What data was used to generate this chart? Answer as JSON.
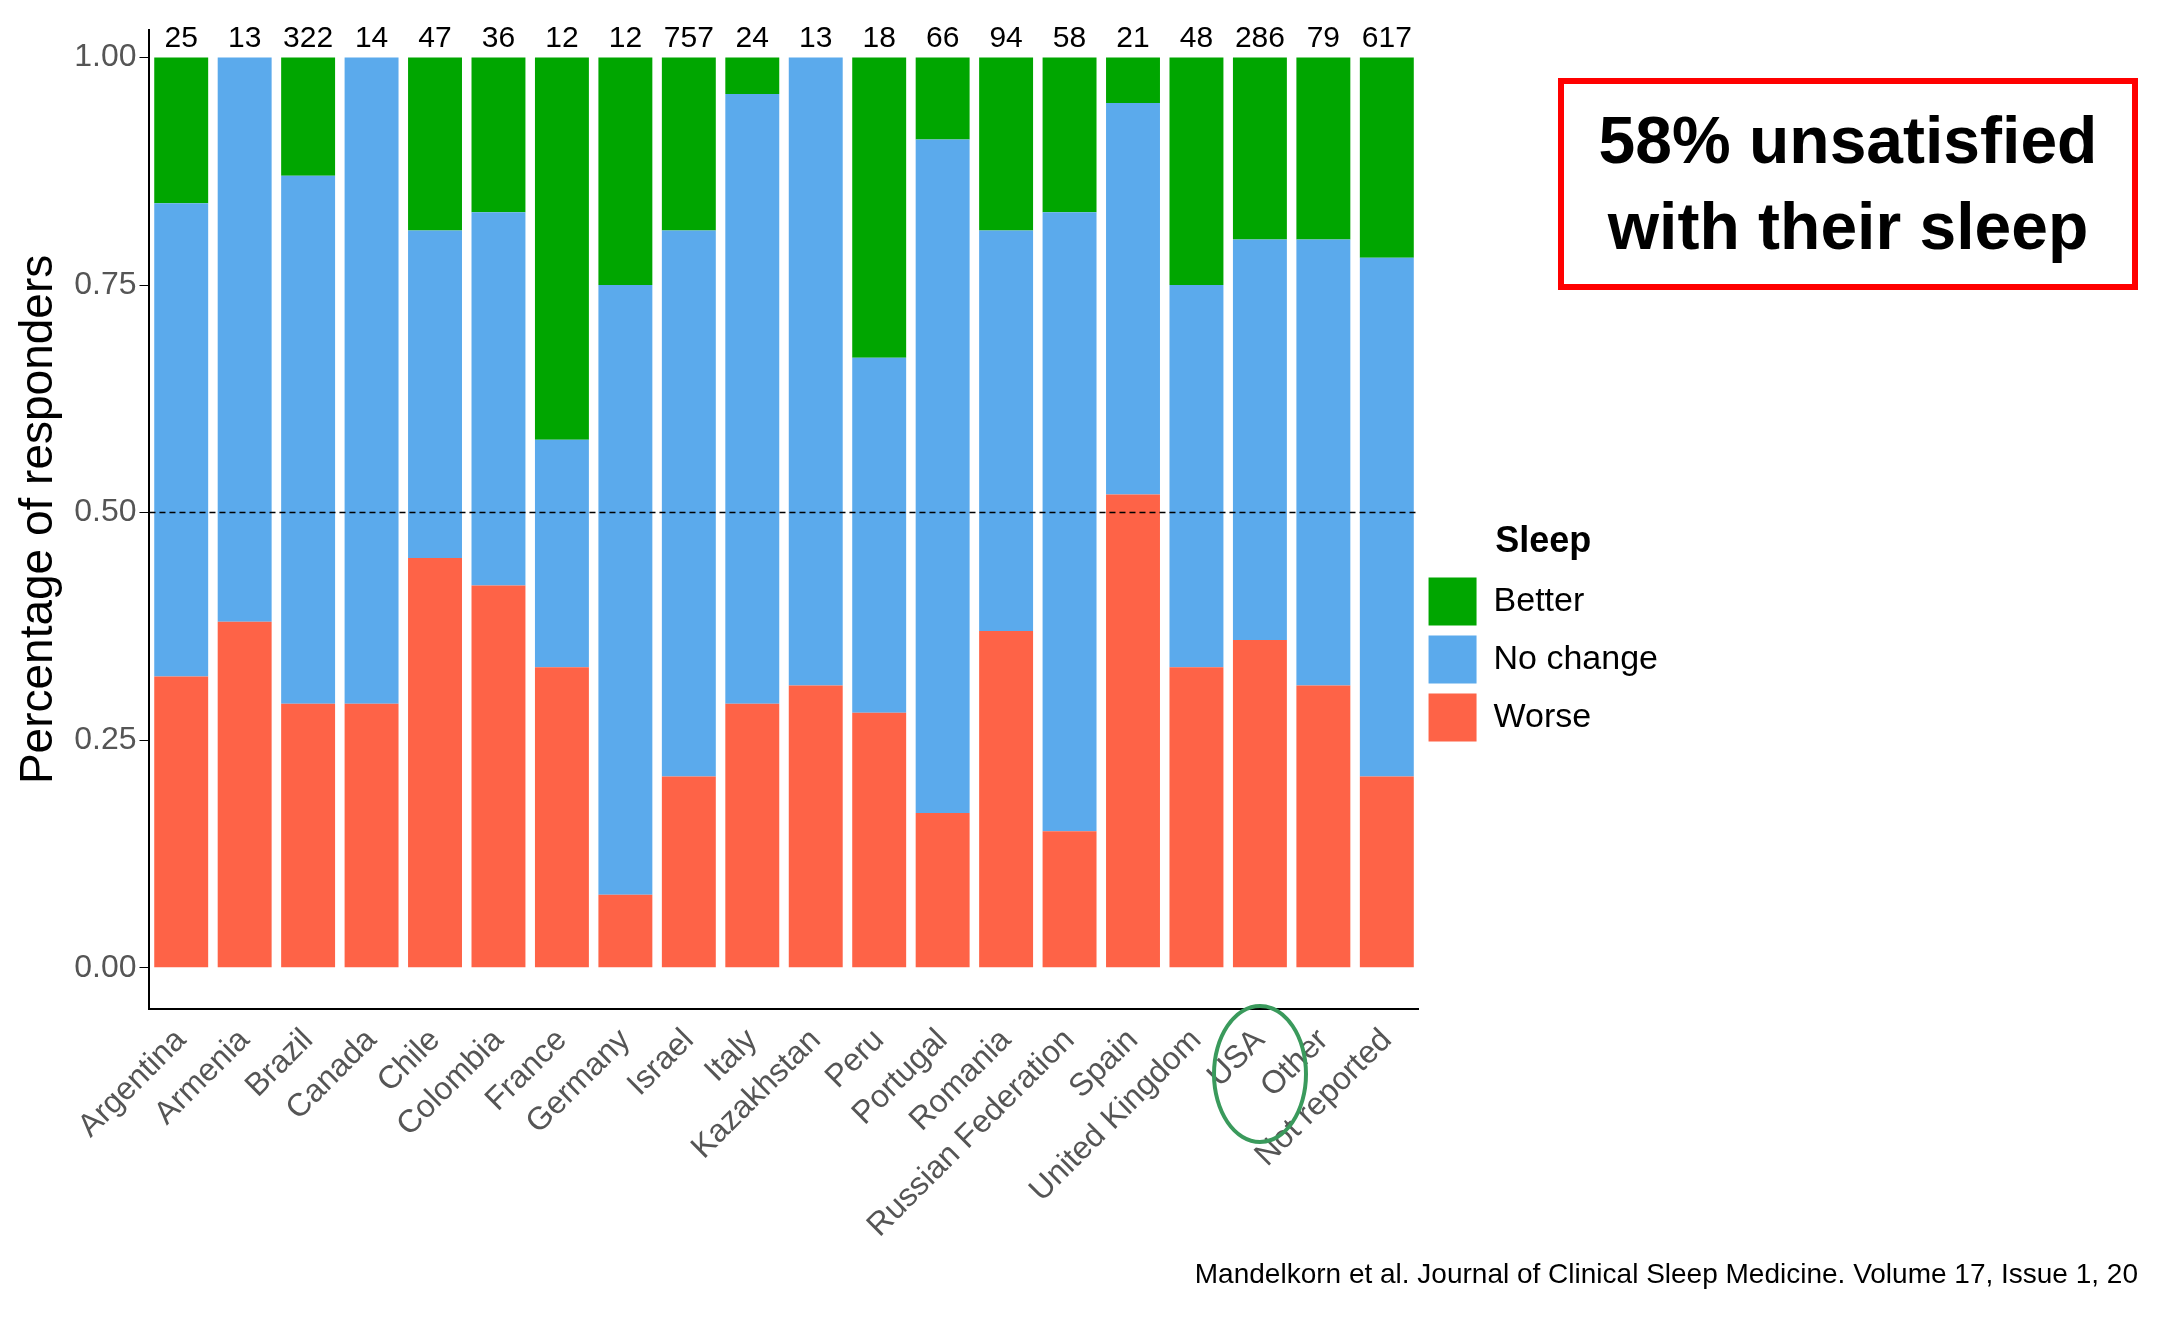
{
  "chart_data": {
    "type": "bar",
    "stacked": true,
    "ylabel": "Percentage of responders",
    "categories": [
      "Argentina",
      "Armenia",
      "Brazil",
      "Canada",
      "Chile",
      "Colombia",
      "France",
      "Germany",
      "Israel",
      "Italy",
      "Kazakhstan",
      "Peru",
      "Portugal",
      "Romania",
      "Russian Federation",
      "Spain",
      "United Kingdom",
      "USA",
      "Other",
      "Not reported"
    ],
    "series": [
      {
        "name": "Worse",
        "color": "#fe6347",
        "values": [
          0.32,
          0.38,
          0.29,
          0.29,
          0.45,
          0.42,
          0.33,
          0.08,
          0.21,
          0.29,
          0.31,
          0.28,
          0.17,
          0.37,
          0.15,
          0.52,
          0.33,
          0.36,
          0.31,
          0.21
        ]
      },
      {
        "name": "No change",
        "color": "#5baaec",
        "values": [
          0.52,
          0.62,
          0.58,
          0.71,
          0.36,
          0.41,
          0.25,
          0.67,
          0.6,
          0.67,
          0.69,
          0.39,
          0.74,
          0.44,
          0.68,
          0.43,
          0.42,
          0.44,
          0.49,
          0.57
        ]
      },
      {
        "name": "Better",
        "color": "#00a600",
        "values": [
          0.16,
          0,
          0.13,
          0,
          0.19,
          0.17,
          0.42,
          0.25,
          0.19,
          0.04,
          0,
          0.33,
          0.09,
          0.19,
          0.17,
          0.05,
          0.25,
          0.2,
          0.2,
          0.22
        ]
      }
    ],
    "ylim": [
      -0.045,
      1.03
    ],
    "yticks": [
      {
        "value": 0,
        "label": "0.00"
      },
      {
        "value": 0.25,
        "label": "0.25"
      },
      {
        "value": 0.5,
        "label": "0.50"
      },
      {
        "value": 0.75,
        "label": "0.75"
      },
      {
        "value": 1,
        "label": "1.00"
      }
    ],
    "ref_lines": [
      {
        "axis": "y",
        "value": 0.5,
        "line_style": "dashed",
        "color": "#000000"
      }
    ],
    "legend": "right",
    "legend_title": "Sleep",
    "grid": false,
    "annotations": [
      "58% unsatisfied with their sleep",
      "Mandelkorn et al. Journal of Clinical Sleep Medicine. Volume 17, Issue 1, 20",
      {
        "text": "25",
        "x": "Argentina",
        "y": 1
      },
      {
        "text": "13",
        "x": "Armenia",
        "y": 1
      },
      {
        "text": "322",
        "x": "Brazil",
        "y": 1
      },
      {
        "text": "14",
        "x": "Canada",
        "y": 1
      },
      {
        "text": "47",
        "x": "Chile",
        "y": 1
      },
      {
        "text": "36",
        "x": "Colombia",
        "y": 1
      },
      {
        "text": "12",
        "x": "France",
        "y": 1
      },
      {
        "text": "12",
        "x": "Germany",
        "y": 1
      },
      {
        "text": "757",
        "x": "Israel",
        "y": 1
      },
      {
        "text": "24",
        "x": "Italy",
        "y": 1
      },
      {
        "text": "13",
        "x": "Kazakhstan",
        "y": 1
      },
      {
        "text": "18",
        "x": "Peru",
        "y": 1
      },
      {
        "text": "66",
        "x": "Portugal",
        "y": 1
      },
      {
        "text": "94",
        "x": "Romania",
        "y": 1
      },
      {
        "text": "58",
        "x": "Russian Federation",
        "y": 1
      },
      {
        "text": "21",
        "x": "Spain",
        "y": 1
      },
      {
        "text": "48",
        "x": "United Kingdom",
        "y": 1
      },
      {
        "text": "286",
        "x": "USA",
        "y": 1
      },
      {
        "text": "79",
        "x": "Other",
        "y": 1
      },
      {
        "text": "617",
        "x": "Not reported",
        "y": 1
      }
    ]
  }
}
